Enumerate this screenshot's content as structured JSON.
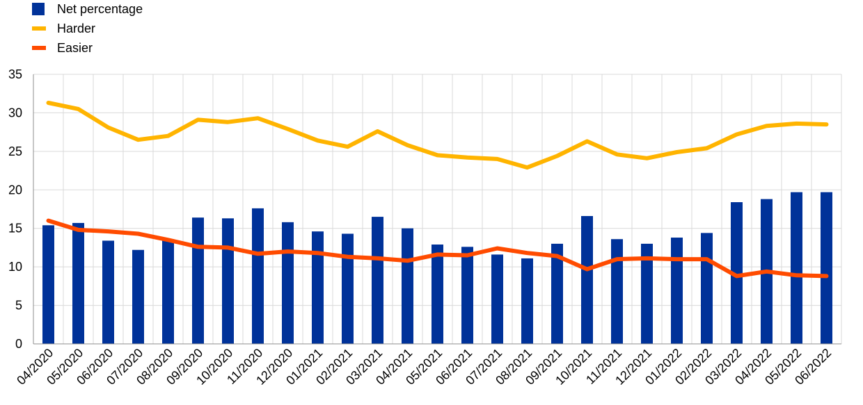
{
  "chart_data": {
    "type": "bar+line",
    "categories": [
      "04/2020",
      "05/2020",
      "06/2020",
      "07/2020",
      "08/2020",
      "09/2020",
      "10/2020",
      "11/2020",
      "12/2020",
      "01/2021",
      "02/2021",
      "03/2021",
      "04/2021",
      "05/2021",
      "06/2021",
      "07/2021",
      "08/2021",
      "09/2021",
      "10/2021",
      "11/2021",
      "12/2021",
      "01/2022",
      "02/2022",
      "03/2022",
      "04/2022",
      "05/2022",
      "06/2022"
    ],
    "series": [
      {
        "name": "Net percentage",
        "type": "bar",
        "color": "#003299",
        "values": [
          15.4,
          15.7,
          13.4,
          12.2,
          13.6,
          16.4,
          16.3,
          17.6,
          15.8,
          14.6,
          14.3,
          16.5,
          15.0,
          12.9,
          12.6,
          11.6,
          11.1,
          13.0,
          16.6,
          13.6,
          13.0,
          13.8,
          14.4,
          18.4,
          18.8,
          19.7,
          19.7
        ]
      },
      {
        "name": "Harder",
        "type": "line",
        "color": "#FFB400",
        "values": [
          31.3,
          30.5,
          28.1,
          26.5,
          27.0,
          29.1,
          28.8,
          29.3,
          27.9,
          26.4,
          25.6,
          27.6,
          25.8,
          24.5,
          24.2,
          24.0,
          22.9,
          24.4,
          26.3,
          24.6,
          24.1,
          24.9,
          25.4,
          27.2,
          28.3,
          28.6,
          28.5
        ]
      },
      {
        "name": "Easier",
        "type": "line",
        "color": "#FF4B00",
        "values": [
          16.0,
          14.8,
          14.6,
          14.3,
          13.5,
          12.6,
          12.5,
          11.7,
          12.0,
          11.8,
          11.3,
          11.1,
          10.8,
          11.6,
          11.5,
          12.4,
          11.8,
          11.4,
          9.7,
          11.0,
          11.1,
          11.0,
          11.0,
          8.8,
          9.4,
          8.9,
          8.8
        ]
      }
    ],
    "ylim": [
      0,
      35
    ],
    "yticks": [
      0,
      5,
      10,
      15,
      20,
      25,
      30,
      35
    ],
    "grid": true,
    "legend_position": "top-left"
  }
}
